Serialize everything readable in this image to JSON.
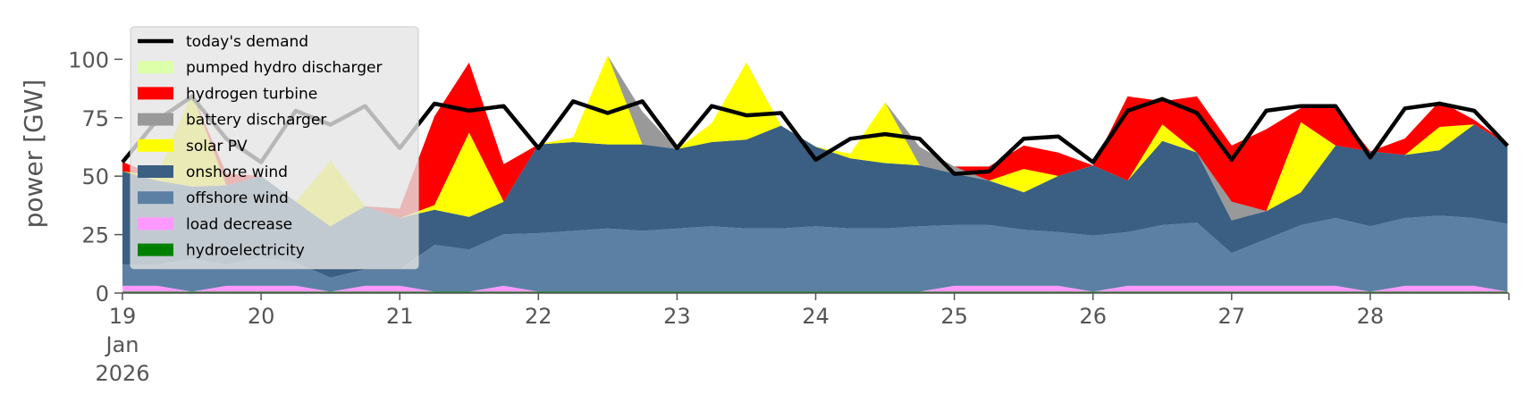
{
  "chart_data": {
    "type": "area",
    "title": "",
    "xlabel": "",
    "ylabel": "power [GW]",
    "ylim": [
      0,
      120
    ],
    "yticks": [
      0,
      25,
      50,
      75,
      100
    ],
    "xlim": [
      19,
      29
    ],
    "xticks": [
      {
        "x": 19,
        "lines": [
          "19",
          "Jan",
          "2026"
        ]
      },
      {
        "x": 20,
        "lines": [
          "20"
        ]
      },
      {
        "x": 21,
        "lines": [
          "21"
        ]
      },
      {
        "x": 22,
        "lines": [
          "22"
        ]
      },
      {
        "x": 23,
        "lines": [
          "23"
        ]
      },
      {
        "x": 24,
        "lines": [
          "24"
        ]
      },
      {
        "x": 25,
        "lines": [
          "25"
        ]
      },
      {
        "x": 26,
        "lines": [
          "26"
        ]
      },
      {
        "x": 27,
        "lines": [
          "27"
        ]
      },
      {
        "x": 28,
        "lines": [
          "28"
        ]
      }
    ],
    "legend_position": "top-left",
    "x": [
      19.0,
      19.25,
      19.5,
      19.75,
      20.0,
      20.25,
      20.5,
      20.75,
      21.0,
      21.25,
      21.5,
      21.75,
      22.0,
      22.25,
      22.5,
      22.75,
      23.0,
      23.25,
      23.5,
      23.75,
      24.0,
      24.25,
      24.5,
      24.75,
      25.0,
      25.25,
      25.5,
      25.75,
      26.0,
      26.25,
      26.5,
      26.75,
      27.0,
      27.25,
      27.5,
      27.75,
      28.0,
      28.25,
      28.5,
      28.75,
      28.99
    ],
    "series": [
      {
        "name": "hydroelectricity",
        "color": "#008000",
        "values": [
          0.6,
          0.6,
          0.6,
          0.6,
          0.6,
          0.6,
          0.6,
          0.6,
          0.6,
          0.6,
          0.6,
          0.6,
          0.6,
          0.6,
          0.6,
          0.6,
          0.6,
          0.6,
          0.6,
          0.6,
          0.6,
          0.6,
          0.6,
          0.6,
          0.6,
          0.6,
          0.6,
          0.6,
          0.6,
          0.6,
          0.6,
          0.6,
          0.6,
          0.6,
          0.6,
          0.6,
          0.6,
          0.6,
          0.6,
          0.6,
          0.6
        ]
      },
      {
        "name": "load decrease",
        "color": "#ff99ff",
        "values": [
          2.5,
          2.5,
          0,
          2.5,
          2.5,
          2.5,
          0,
          2.5,
          2.5,
          0,
          0,
          2.5,
          0,
          0,
          0,
          0,
          0,
          0,
          0,
          0,
          0,
          0,
          0,
          0,
          2.5,
          2.5,
          2.5,
          2.5,
          0,
          2.5,
          2.5,
          2.5,
          2.5,
          2.5,
          2.5,
          2.5,
          0,
          2.5,
          2.5,
          2.5,
          0
        ]
      },
      {
        "name": "offshore wind",
        "color": "#5b80a3",
        "values": [
          9,
          9,
          14,
          9,
          12,
          10,
          6,
          7,
          7,
          20,
          18,
          22,
          25,
          26,
          27,
          26,
          27,
          28,
          27,
          27,
          28,
          27,
          27,
          28,
          26,
          26,
          24,
          23,
          24,
          23,
          26,
          27,
          14,
          20,
          26,
          29,
          28,
          29,
          30,
          29,
          29
        ]
      },
      {
        "name": "onshore wind",
        "color": "#3a5f82",
        "values": [
          40,
          36,
          31,
          34,
          35,
          26,
          22,
          27,
          22,
          15,
          14,
          14,
          38,
          38,
          36,
          37,
          34,
          36,
          38,
          44,
          34,
          30,
          28,
          26,
          22,
          19,
          16,
          24,
          30,
          22,
          36,
          30,
          14,
          12,
          14,
          31,
          32,
          27,
          28,
          40,
          34
        ]
      },
      {
        "name": "solar PV",
        "color": "#ffff00",
        "values": [
          0,
          2,
          40,
          0,
          0,
          0,
          28,
          0,
          0,
          2,
          36,
          0,
          0,
          2,
          38,
          0,
          0,
          8,
          33,
          0,
          0,
          2,
          26,
          0,
          0,
          0,
          10,
          0,
          0,
          0,
          7,
          0,
          0,
          0,
          30,
          0,
          0,
          0,
          10,
          0,
          0
        ]
      },
      {
        "name": "battery discharger",
        "color": "#999999",
        "values": [
          0,
          0,
          0,
          0,
          0,
          0,
          0,
          0,
          0,
          0,
          0,
          0,
          0,
          0,
          0,
          14,
          0,
          0,
          0,
          0,
          0,
          0,
          0,
          8,
          3,
          0,
          0,
          0,
          0,
          0,
          0,
          0,
          8,
          0,
          0,
          0,
          0,
          0,
          0,
          0,
          0
        ]
      },
      {
        "name": "hydrogen turbine",
        "color": "#ff0000",
        "values": [
          4,
          0,
          0,
          5,
          0,
          0,
          0,
          0,
          4,
          38,
          30,
          16,
          0,
          0,
          0,
          0,
          0,
          0,
          0,
          0,
          0,
          0,
          0,
          0,
          0,
          6,
          10,
          10,
          0,
          36,
          10,
          24,
          24,
          35,
          6,
          16,
          0,
          7,
          11,
          2,
          0
        ]
      },
      {
        "name": "pumped hydro discharger",
        "color": "#ddffaa",
        "values": [
          0,
          0,
          0,
          0,
          0,
          0,
          0,
          0,
          0,
          0,
          0,
          0,
          0,
          0,
          0,
          0,
          0,
          0,
          0,
          0,
          0,
          0,
          0,
          0,
          0,
          0,
          0,
          0,
          0,
          0,
          0,
          0,
          0,
          0,
          0,
          0,
          0,
          0,
          0,
          0,
          0
        ]
      },
      {
        "name": "today's demand",
        "color": "#000000",
        "kind": "line",
        "values": [
          56,
          74,
          84,
          66,
          56,
          78,
          72,
          80,
          62,
          81,
          78,
          80,
          62,
          82,
          77,
          82,
          62,
          80,
          76,
          77,
          57,
          66,
          68,
          66,
          51,
          52,
          66,
          67,
          56,
          78,
          83,
          77,
          57,
          78,
          80,
          80,
          58,
          79,
          81,
          78,
          63
        ]
      }
    ],
    "legend": [
      "today's demand",
      "pumped hydro discharger",
      "hydrogen turbine",
      "battery discharger",
      "solar PV",
      "onshore wind",
      "offshore wind",
      "load decrease",
      "hydroelectricity"
    ]
  }
}
